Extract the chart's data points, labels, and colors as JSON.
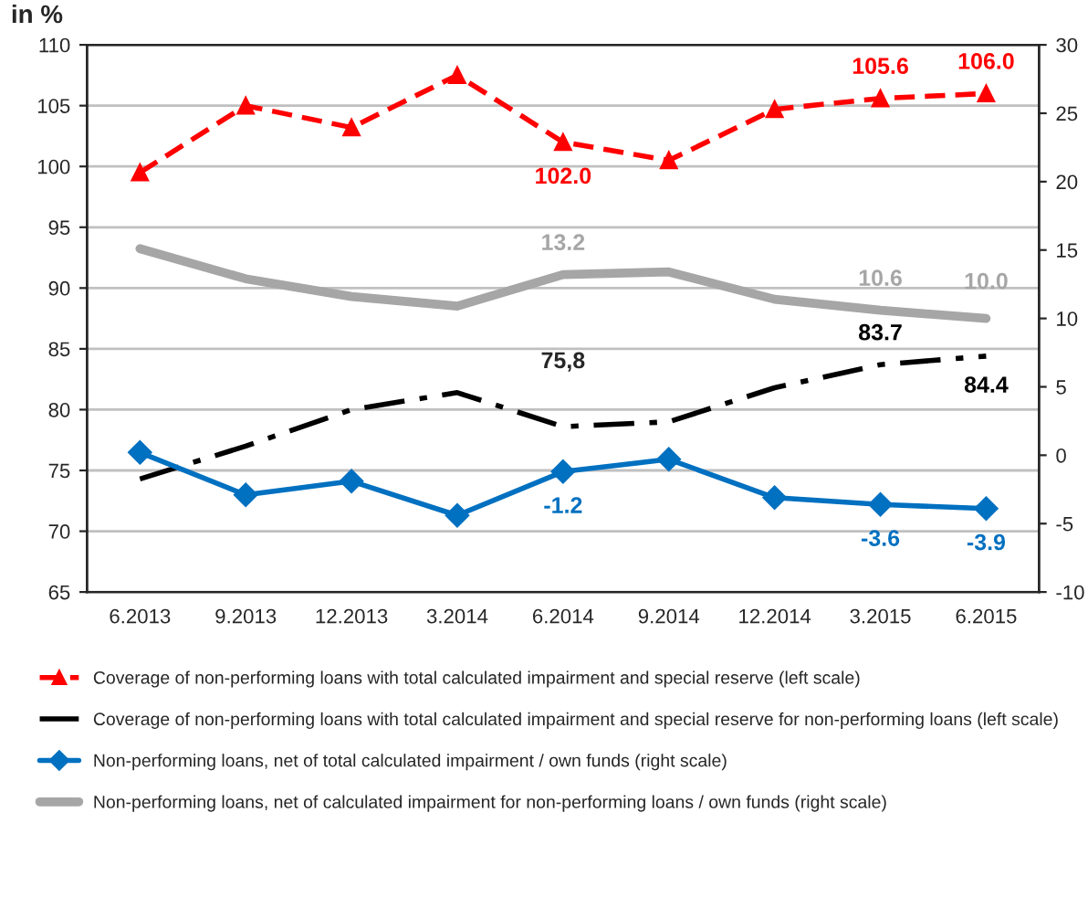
{
  "chart_data": {
    "type": "line",
    "title": "in %",
    "categories": [
      "6.2013",
      "9.2013",
      "12.2013",
      "3.2014",
      "6.2014",
      "9.2014",
      "12.2014",
      "3.2015",
      "6.2015"
    ],
    "series": [
      {
        "name": "Coverage of non-performing loans with total calculated impairment and special reserve (left scale)",
        "color": "#ff0000",
        "marker": "triangle",
        "line_style": "dashed",
        "values": [
          99.5,
          105.0,
          103.2,
          107.5,
          102.0,
          100.5,
          104.7,
          105.6,
          106.0
        ],
        "value_labels": [
          null,
          null,
          null,
          null,
          "102.0",
          null,
          null,
          "105.6",
          "106.0"
        ]
      },
      {
        "name": "Coverage of non-performing loans with total calculated impairment and special reserve for non-performing loans (left scale)",
        "color": "#000000",
        "marker": "none",
        "line_style": "dashdot",
        "values": [
          74.3,
          77.0,
          80.0,
          81.4,
          78.6,
          79.0,
          81.8,
          83.7,
          84.4
        ],
        "value_labels": [
          null,
          null,
          null,
          null,
          null,
          null,
          null,
          "83.7",
          "84.4"
        ]
      },
      {
        "name": "Non-performing loans, net of total calculated impairment / own funds (right scale)",
        "color": "#0070c0",
        "marker": "diamond",
        "line_style": "solid",
        "axis": "y2",
        "values": [
          0.2,
          -2.9,
          -1.9,
          -4.4,
          -1.2,
          -0.3,
          -3.1,
          -3.6,
          -3.9
        ],
        "value_labels": [
          null,
          null,
          null,
          null,
          "-1.2",
          null,
          null,
          "-3.6",
          "-3.9"
        ]
      },
      {
        "name": "Non-performing loans, net of calculated impairment for non-performing loans / own funds (right scale)",
        "color": "#a6a6a6",
        "marker": "none",
        "line_style": "solid",
        "axis": "y2",
        "values": [
          15.1,
          12.9,
          11.6,
          10.9,
          13.2,
          13.4,
          11.4,
          10.6,
          10.0
        ],
        "value_labels": [
          null,
          null,
          null,
          null,
          "13.2",
          null,
          null,
          "10.6",
          "10.0"
        ]
      }
    ],
    "ylim": [
      65,
      110
    ],
    "yticks": [
      65,
      70,
      75,
      80,
      85,
      90,
      95,
      100,
      105,
      110
    ],
    "y2lim": [
      -10,
      30
    ],
    "y2ticks": [
      -10,
      -5,
      0,
      5,
      10,
      15,
      20,
      25,
      30
    ],
    "annotations": [
      "75,8"
    ],
    "grid": "y",
    "legend": "bottom"
  }
}
